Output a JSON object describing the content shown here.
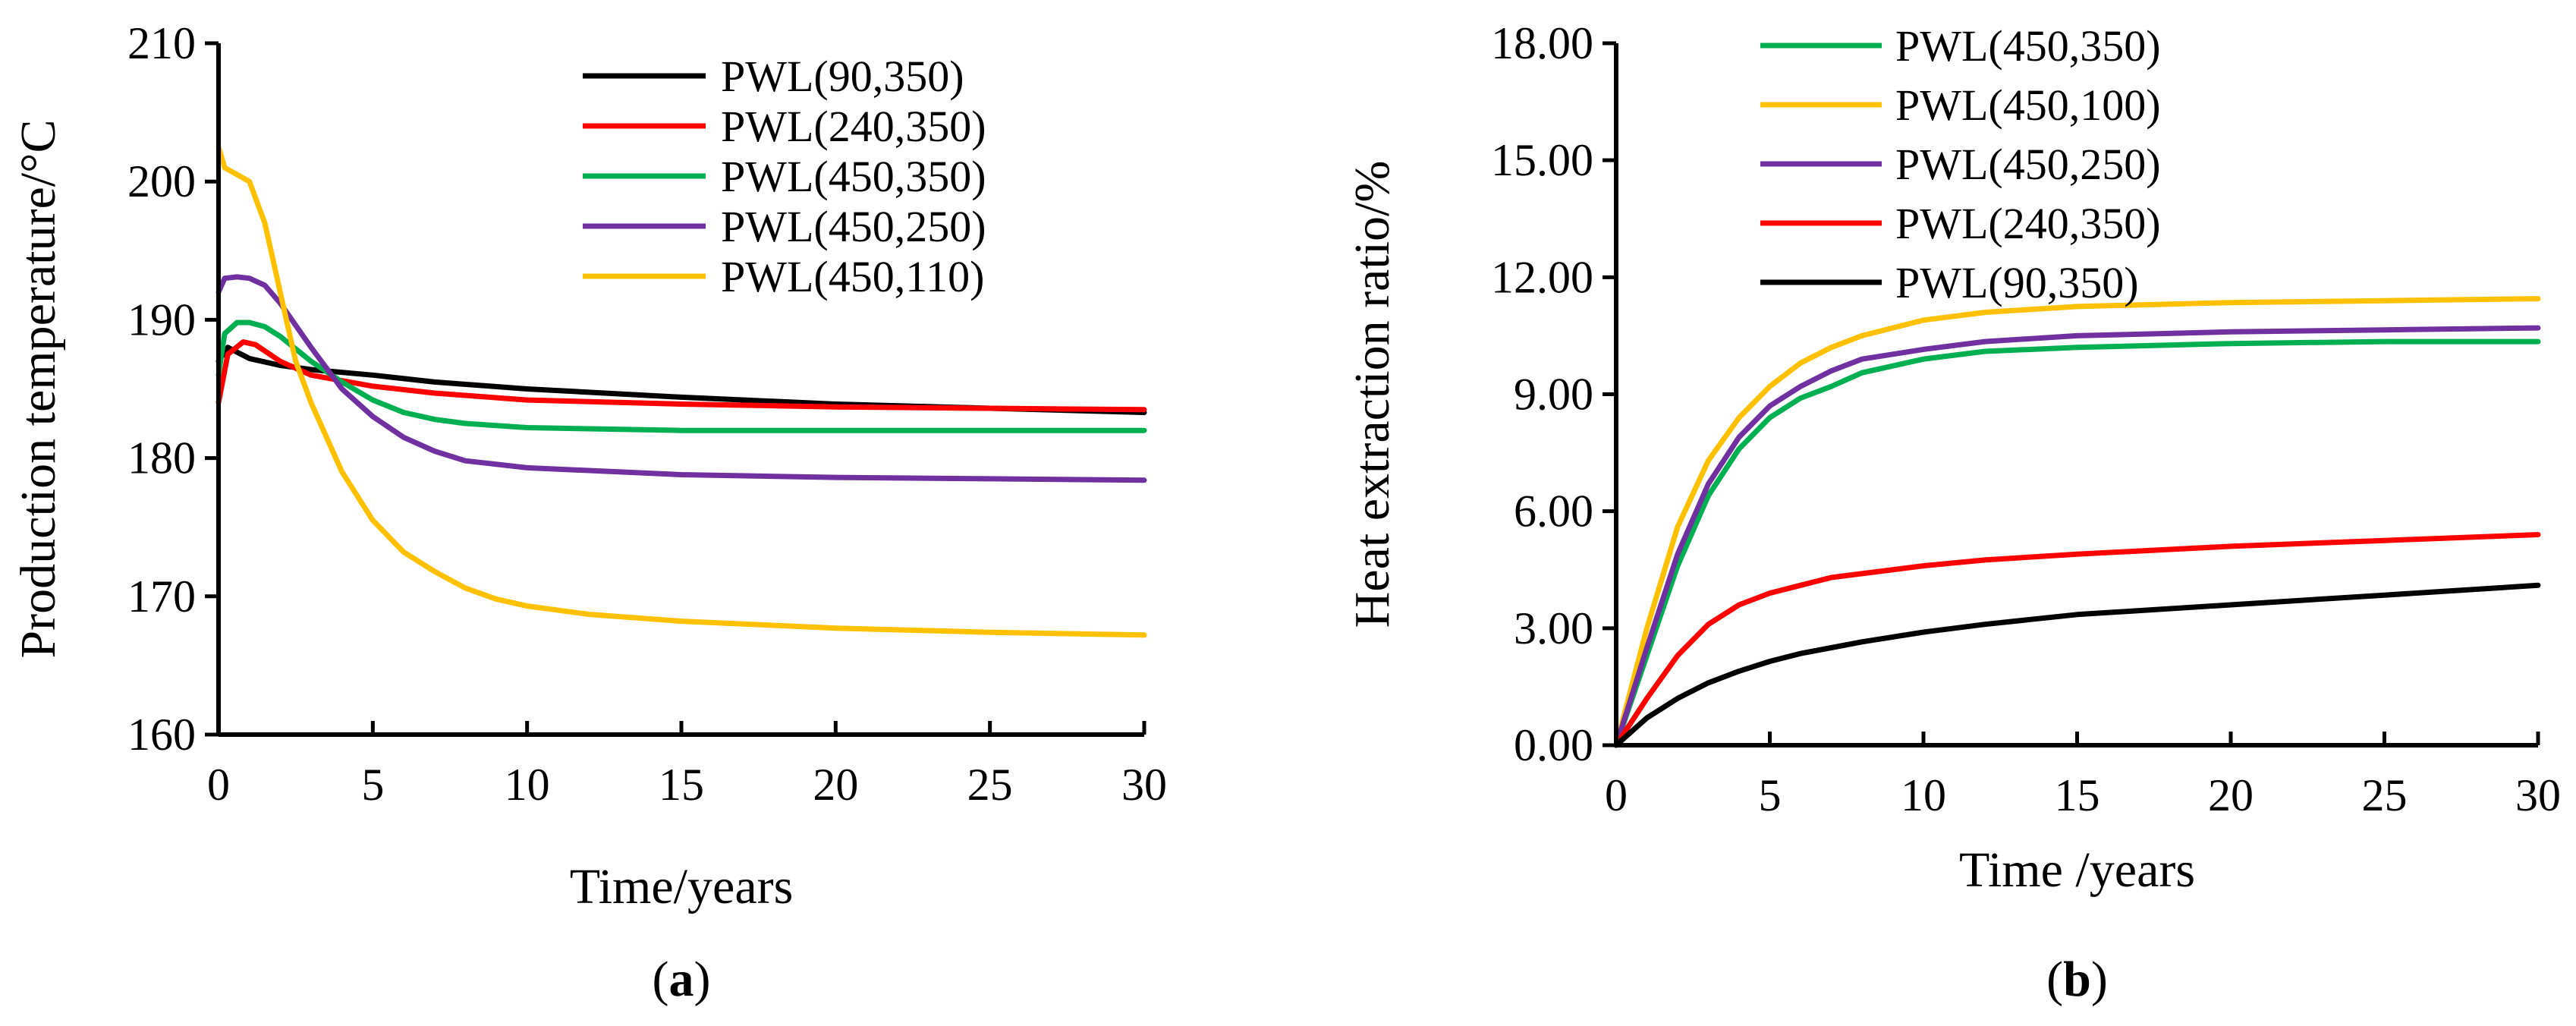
{
  "chart_data": [
    {
      "id": "a",
      "panel_label": "a",
      "type": "line",
      "title": "",
      "xlabel": "Time/years",
      "ylabel": "Production temperature/°C",
      "xlim": [
        0,
        30
      ],
      "ylim": [
        160,
        210
      ],
      "xticks": [
        0,
        5,
        10,
        15,
        20,
        25,
        30
      ],
      "yticks": [
        160,
        170,
        180,
        190,
        200,
        210
      ],
      "ytick_labels": [
        "160",
        "170",
        "180",
        "190",
        "200",
        "210"
      ],
      "grid": false,
      "legend_position": "top-right",
      "series": [
        {
          "name": "PWL(90,350)",
          "color": "#000000",
          "points": [
            [
              0,
              187
            ],
            [
              0.3,
              188
            ],
            [
              1,
              187.2
            ],
            [
              2,
              186.7
            ],
            [
              3,
              186.4
            ],
            [
              5,
              186
            ],
            [
              7,
              185.5
            ],
            [
              10,
              185
            ],
            [
              15,
              184.4
            ],
            [
              20,
              183.9
            ],
            [
              25,
              183.6
            ],
            [
              30,
              183.3
            ]
          ]
        },
        {
          "name": "PWL(240,350)",
          "color": "#ff0000",
          "points": [
            [
              0,
              184
            ],
            [
              0.3,
              187.5
            ],
            [
              0.8,
              188.4
            ],
            [
              1.2,
              188.2
            ],
            [
              2,
              187
            ],
            [
              3,
              186
            ],
            [
              5,
              185.2
            ],
            [
              7,
              184.7
            ],
            [
              10,
              184.2
            ],
            [
              15,
              183.9
            ],
            [
              20,
              183.7
            ],
            [
              25,
              183.6
            ],
            [
              30,
              183.5
            ]
          ]
        },
        {
          "name": "PWL(450,350)",
          "color": "#00b050",
          "points": [
            [
              0,
              186
            ],
            [
              0.2,
              189
            ],
            [
              0.6,
              189.8
            ],
            [
              1,
              189.8
            ],
            [
              1.5,
              189.5
            ],
            [
              2,
              188.8
            ],
            [
              3,
              187
            ],
            [
              4,
              185.5
            ],
            [
              5,
              184.2
            ],
            [
              6,
              183.3
            ],
            [
              7,
              182.8
            ],
            [
              8,
              182.5
            ],
            [
              10,
              182.2
            ],
            [
              15,
              182
            ],
            [
              20,
              182
            ],
            [
              25,
              182
            ],
            [
              30,
              182
            ]
          ]
        },
        {
          "name": "PWL(450,250)",
          "color": "#7030a0",
          "points": [
            [
              0,
              192
            ],
            [
              0.2,
              193
            ],
            [
              0.6,
              193.1
            ],
            [
              1,
              193
            ],
            [
              1.5,
              192.5
            ],
            [
              2,
              191.2
            ],
            [
              3,
              188
            ],
            [
              4,
              185
            ],
            [
              5,
              183
            ],
            [
              6,
              181.5
            ],
            [
              7,
              180.5
            ],
            [
              8,
              179.8
            ],
            [
              10,
              179.3
            ],
            [
              15,
              178.8
            ],
            [
              20,
              178.6
            ],
            [
              25,
              178.5
            ],
            [
              30,
              178.4
            ]
          ]
        },
        {
          "name": "PWL(450,110)",
          "color": "#ffc000",
          "points": [
            [
              0,
              202.5
            ],
            [
              0.2,
              201
            ],
            [
              0.6,
              200.5
            ],
            [
              1,
              200
            ],
            [
              1.5,
              197
            ],
            [
              2,
              192
            ],
            [
              2.5,
              187
            ],
            [
              3,
              184
            ],
            [
              4,
              179
            ],
            [
              5,
              175.5
            ],
            [
              6,
              173.2
            ],
            [
              7,
              171.8
            ],
            [
              8,
              170.6
            ],
            [
              9,
              169.8
            ],
            [
              10,
              169.3
            ],
            [
              12,
              168.7
            ],
            [
              15,
              168.2
            ],
            [
              20,
              167.7
            ],
            [
              25,
              167.4
            ],
            [
              30,
              167.2
            ]
          ]
        }
      ]
    },
    {
      "id": "b",
      "panel_label": "b",
      "type": "line",
      "title": "",
      "xlabel": "Time /years",
      "ylabel": "Heat extraction ratio/%",
      "xlim": [
        0,
        30
      ],
      "ylim": [
        0,
        18
      ],
      "xticks": [
        0,
        5,
        10,
        15,
        20,
        25,
        30
      ],
      "yticks": [
        0,
        3,
        6,
        9,
        12,
        15,
        18
      ],
      "ytick_labels": [
        "0.00",
        "3.00",
        "6.00",
        "9.00",
        "12.00",
        "15.00",
        "18.00"
      ],
      "grid": false,
      "legend_position": "top-center",
      "series": [
        {
          "name": "PWL(450,350)",
          "color": "#00b050",
          "points": [
            [
              0,
              0
            ],
            [
              1,
              2.3
            ],
            [
              2,
              4.6
            ],
            [
              3,
              6.4
            ],
            [
              4,
              7.6
            ],
            [
              5,
              8.4
            ],
            [
              6,
              8.9
            ],
            [
              7,
              9.2
            ],
            [
              8,
              9.55
            ],
            [
              10,
              9.9
            ],
            [
              12,
              10.1
            ],
            [
              15,
              10.2
            ],
            [
              20,
              10.3
            ],
            [
              25,
              10.35
            ],
            [
              30,
              10.35
            ]
          ]
        },
        {
          "name": "PWL(450,100)",
          "color": "#ffc000",
          "points": [
            [
              0,
              0
            ],
            [
              1,
              3
            ],
            [
              2,
              5.6
            ],
            [
              3,
              7.3
            ],
            [
              4,
              8.4
            ],
            [
              5,
              9.2
            ],
            [
              6,
              9.8
            ],
            [
              7,
              10.2
            ],
            [
              8,
              10.5
            ],
            [
              10,
              10.9
            ],
            [
              12,
              11.1
            ],
            [
              15,
              11.25
            ],
            [
              20,
              11.35
            ],
            [
              25,
              11.4
            ],
            [
              30,
              11.45
            ]
          ]
        },
        {
          "name": "PWL(450,250)",
          "color": "#7030a0",
          "points": [
            [
              0,
              0
            ],
            [
              1,
              2.5
            ],
            [
              2,
              4.9
            ],
            [
              3,
              6.7
            ],
            [
              4,
              7.9
            ],
            [
              5,
              8.7
            ],
            [
              6,
              9.2
            ],
            [
              7,
              9.6
            ],
            [
              8,
              9.9
            ],
            [
              10,
              10.15
            ],
            [
              12,
              10.35
            ],
            [
              15,
              10.5
            ],
            [
              20,
              10.6
            ],
            [
              25,
              10.65
            ],
            [
              30,
              10.7
            ]
          ]
        },
        {
          "name": "PWL(240,350)",
          "color": "#ff0000",
          "points": [
            [
              0,
              0
            ],
            [
              1,
              1.2
            ],
            [
              2,
              2.3
            ],
            [
              3,
              3.1
            ],
            [
              4,
              3.6
            ],
            [
              5,
              3.9
            ],
            [
              6,
              4.1
            ],
            [
              7,
              4.3
            ],
            [
              8,
              4.4
            ],
            [
              10,
              4.6
            ],
            [
              12,
              4.75
            ],
            [
              15,
              4.9
            ],
            [
              20,
              5.1
            ],
            [
              25,
              5.25
            ],
            [
              30,
              5.4
            ]
          ]
        },
        {
          "name": "PWL(90,350)",
          "color": "#000000",
          "points": [
            [
              0,
              0
            ],
            [
              1,
              0.7
            ],
            [
              2,
              1.2
            ],
            [
              3,
              1.6
            ],
            [
              4,
              1.9
            ],
            [
              5,
              2.15
            ],
            [
              6,
              2.35
            ],
            [
              7,
              2.5
            ],
            [
              8,
              2.65
            ],
            [
              10,
              2.9
            ],
            [
              12,
              3.1
            ],
            [
              15,
              3.35
            ],
            [
              20,
              3.6
            ],
            [
              25,
              3.85
            ],
            [
              30,
              4.1
            ]
          ]
        }
      ]
    }
  ]
}
